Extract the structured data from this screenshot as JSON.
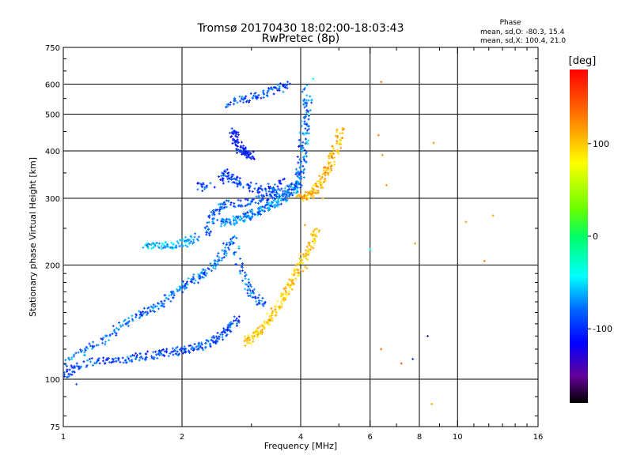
{
  "chart_data": {
    "type": "scatter",
    "title": "Tromsø 20170430 18:02:00-18:03:43",
    "subtitle": "RwPretec (8p)",
    "xlabel": "Frequency [MHz]",
    "ylabel": "Stationary phase Virtual Height [km]",
    "x_scale": "log",
    "y_scale": "log",
    "xlim": [
      1,
      16
    ],
    "ylim": [
      75,
      750
    ],
    "x_ticks": [
      1,
      2,
      4,
      6,
      8,
      10,
      16
    ],
    "x_minor_ticks": [
      3,
      5,
      7,
      9,
      11,
      12,
      13,
      14,
      15
    ],
    "y_ticks": [
      75,
      100,
      200,
      300,
      400,
      500,
      600,
      750
    ],
    "grid_x": [
      2,
      4,
      6,
      8,
      10
    ],
    "grid_y": [
      100,
      200,
      300,
      400,
      500,
      600
    ],
    "grid": true,
    "stats": {
      "heading": "Phase",
      "line1": "mean, sd,O: -80.3, 15.4",
      "line2": "mean, sd,X: 100.4, 21.0"
    },
    "colorbar": {
      "label": "[deg]",
      "range": [
        -180,
        180
      ],
      "ticks": [
        100,
        0,
        -100
      ],
      "tick_labels": [
        "100",
        "0",
        "-100"
      ]
    },
    "point_phase_deg": {
      "O_mode": -80.3,
      "X_mode": 100.4
    },
    "traces": [
      {
        "id": "O-lower-E-F1",
        "points": [
          [
            1.0,
            102
          ],
          [
            1.05,
            106
          ],
          [
            1.1,
            109
          ],
          [
            1.2,
            111
          ],
          [
            1.3,
            112
          ],
          [
            1.4,
            113
          ],
          [
            1.5,
            114
          ],
          [
            1.6,
            115
          ],
          [
            1.7,
            116
          ],
          [
            1.8,
            117
          ],
          [
            1.9,
            118
          ],
          [
            2.0,
            119
          ],
          [
            2.1,
            120
          ],
          [
            2.2,
            122
          ],
          [
            2.3,
            124
          ],
          [
            2.4,
            127
          ],
          [
            2.5,
            130
          ],
          [
            2.6,
            134
          ],
          [
            2.7,
            139
          ],
          [
            2.8,
            145
          ]
        ],
        "phase": -90
      },
      {
        "id": "O-upper-E-F1",
        "points": [
          [
            1.0,
            110
          ],
          [
            1.1,
            117
          ],
          [
            1.2,
            123
          ],
          [
            1.3,
            130
          ],
          [
            1.4,
            138
          ],
          [
            1.5,
            145
          ],
          [
            1.6,
            150
          ],
          [
            1.7,
            155
          ],
          [
            1.8,
            160
          ],
          [
            1.9,
            167
          ],
          [
            2.0,
            175
          ],
          [
            2.1,
            180
          ],
          [
            2.2,
            186
          ],
          [
            2.3,
            192
          ],
          [
            2.4,
            200
          ],
          [
            2.5,
            210
          ],
          [
            2.6,
            222
          ],
          [
            2.7,
            235
          ],
          [
            2.8,
            200
          ],
          [
            2.9,
            180
          ],
          [
            3.0,
            170
          ],
          [
            3.1,
            162
          ],
          [
            3.2,
            158
          ]
        ],
        "phase": -80
      },
      {
        "id": "O-lower-F2",
        "points": [
          [
            2.5,
            258
          ],
          [
            2.6,
            260
          ],
          [
            2.7,
            262
          ],
          [
            2.8,
            265
          ],
          [
            2.9,
            268
          ],
          [
            3.0,
            272
          ],
          [
            3.1,
            276
          ],
          [
            3.2,
            280
          ],
          [
            3.3,
            285
          ],
          [
            3.4,
            290
          ],
          [
            3.5,
            295
          ],
          [
            3.6,
            300
          ],
          [
            3.7,
            306
          ],
          [
            3.8,
            312
          ],
          [
            3.9,
            318
          ],
          [
            4.0,
            340
          ],
          [
            4.05,
            380
          ],
          [
            4.1,
            440
          ],
          [
            4.15,
            500
          ],
          [
            4.2,
            560
          ]
        ],
        "phase": -75
      },
      {
        "id": "O-upper-F2",
        "points": [
          [
            2.3,
            240
          ],
          [
            2.35,
            260
          ],
          [
            2.4,
            275
          ],
          [
            2.5,
            285
          ],
          [
            2.6,
            290
          ],
          [
            2.8,
            292
          ],
          [
            3.0,
            295
          ],
          [
            3.2,
            300
          ],
          [
            3.4,
            305
          ],
          [
            3.6,
            312
          ],
          [
            3.8,
            320
          ],
          [
            3.9,
            330
          ],
          [
            4.0,
            360
          ],
          [
            4.05,
            420
          ],
          [
            4.1,
            520
          ],
          [
            4.15,
            600
          ]
        ],
        "phase": -85
      },
      {
        "id": "O-spread-F2",
        "points": [
          [
            2.5,
            335
          ],
          [
            2.6,
            350
          ],
          [
            2.7,
            340
          ],
          [
            2.8,
            330
          ],
          [
            3.0,
            320
          ],
          [
            3.2,
            310
          ],
          [
            3.4,
            318
          ],
          [
            3.6,
            330
          ],
          [
            2.2,
            325
          ],
          [
            2.3,
            320
          ]
        ],
        "phase": -95
      },
      {
        "id": "O-high-echo",
        "points": [
          [
            2.6,
            530
          ],
          [
            2.8,
            545
          ],
          [
            3.0,
            555
          ],
          [
            3.2,
            565
          ],
          [
            3.4,
            575
          ],
          [
            3.6,
            588
          ],
          [
            3.7,
            600
          ]
        ],
        "phase": -90
      },
      {
        "id": "O-isolated-patch",
        "points": [
          [
            2.7,
            455
          ],
          [
            2.72,
            440
          ],
          [
            2.75,
            420
          ],
          [
            2.8,
            405
          ],
          [
            2.85,
            400
          ],
          [
            2.9,
            395
          ],
          [
            2.95,
            390
          ],
          [
            3.0,
            388
          ]
        ],
        "phase": -105
      },
      {
        "id": "O-detached-low",
        "points": [
          [
            1.6,
            222
          ],
          [
            1.7,
            224
          ],
          [
            1.8,
            225
          ],
          [
            1.9,
            226
          ],
          [
            2.0,
            228
          ],
          [
            2.1,
            232
          ],
          [
            2.2,
            238
          ]
        ],
        "phase": -60
      },
      {
        "id": "X-F1",
        "points": [
          [
            2.9,
            125
          ],
          [
            3.0,
            128
          ],
          [
            3.1,
            132
          ],
          [
            3.2,
            136
          ],
          [
            3.3,
            142
          ],
          [
            3.4,
            148
          ],
          [
            3.5,
            155
          ],
          [
            3.6,
            163
          ],
          [
            3.7,
            172
          ],
          [
            3.8,
            180
          ],
          [
            3.9,
            190
          ],
          [
            4.0,
            200
          ],
          [
            4.1,
            210
          ],
          [
            4.2,
            222
          ],
          [
            4.3,
            235
          ],
          [
            4.4,
            250
          ]
        ],
        "phase": 100
      },
      {
        "id": "X-F2",
        "points": [
          [
            4.0,
            300
          ],
          [
            4.1,
            302
          ],
          [
            4.2,
            305
          ],
          [
            4.3,
            310
          ],
          [
            4.4,
            318
          ],
          [
            4.5,
            330
          ],
          [
            4.6,
            345
          ],
          [
            4.7,
            362
          ],
          [
            4.8,
            380
          ],
          [
            4.9,
            400
          ],
          [
            5.0,
            430
          ],
          [
            5.05,
            460
          ]
        ],
        "phase": 110
      }
    ],
    "scatter_points": [
      {
        "x": 6.4,
        "y": 608,
        "phase": 140
      },
      {
        "x": 6.3,
        "y": 440,
        "phase": 130
      },
      {
        "x": 6.45,
        "y": 390,
        "phase": 120
      },
      {
        "x": 6.6,
        "y": 325,
        "phase": 125
      },
      {
        "x": 6.0,
        "y": 220,
        "phase": -30
      },
      {
        "x": 7.8,
        "y": 228,
        "phase": 120
      },
      {
        "x": 8.7,
        "y": 420,
        "phase": 130
      },
      {
        "x": 8.4,
        "y": 130,
        "phase": -130
      },
      {
        "x": 7.2,
        "y": 110,
        "phase": 150
      },
      {
        "x": 6.4,
        "y": 120,
        "phase": 140
      },
      {
        "x": 7.7,
        "y": 113,
        "phase": -100
      },
      {
        "x": 8.6,
        "y": 86,
        "phase": 120
      },
      {
        "x": 10.5,
        "y": 260,
        "phase": 120
      },
      {
        "x": 11.7,
        "y": 205,
        "phase": 145
      },
      {
        "x": 12.3,
        "y": 270,
        "phase": 120
      },
      {
        "x": 1.08,
        "y": 97,
        "phase": -90
      },
      {
        "x": 4.2,
        "y": 500,
        "phase": -40
      },
      {
        "x": 4.3,
        "y": 620,
        "phase": -40
      },
      {
        "x": 4.55,
        "y": 300,
        "phase": 120
      },
      {
        "x": 4.1,
        "y": 255,
        "phase": 120
      },
      {
        "x": 4.15,
        "y": 196,
        "phase": 110
      }
    ]
  }
}
